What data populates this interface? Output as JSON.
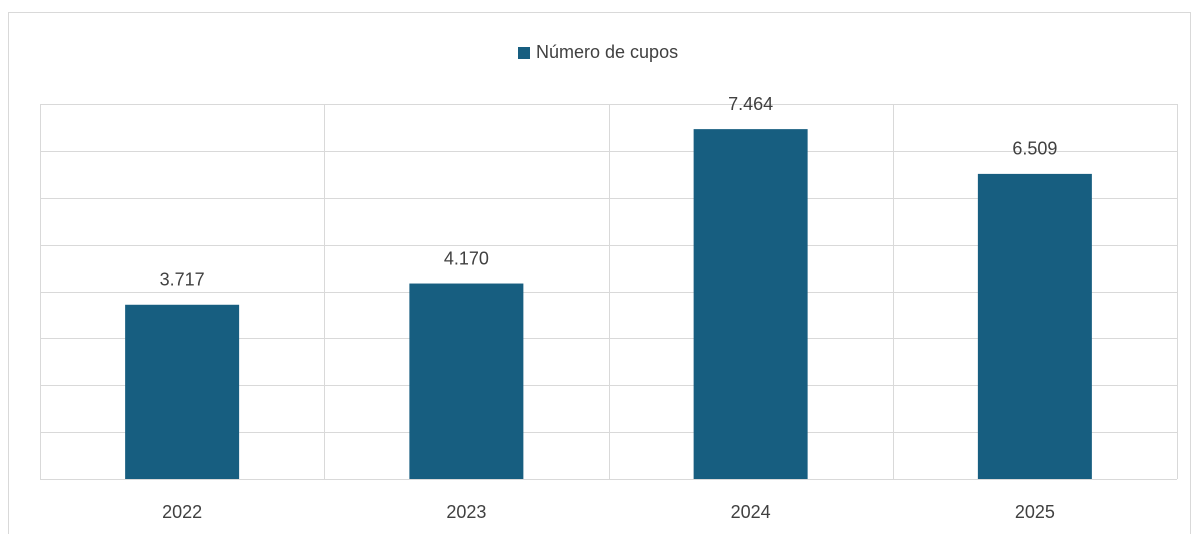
{
  "chart_data": {
    "type": "bar",
    "categories": [
      "2022",
      "2023",
      "2024",
      "2025"
    ],
    "series": [
      {
        "name": "Número de cupos",
        "color": "#175e80",
        "values": [
          3717,
          4170,
          7464,
          6509
        ],
        "value_labels": [
          "3.717",
          "4.170",
          "7.464",
          "6.509"
        ]
      }
    ],
    "ylim": [
      0,
      8000
    ],
    "yticks": [
      0,
      1000,
      2000,
      3000,
      4000,
      5000,
      6000,
      7000,
      8000
    ],
    "grid": true,
    "legend": "top"
  }
}
